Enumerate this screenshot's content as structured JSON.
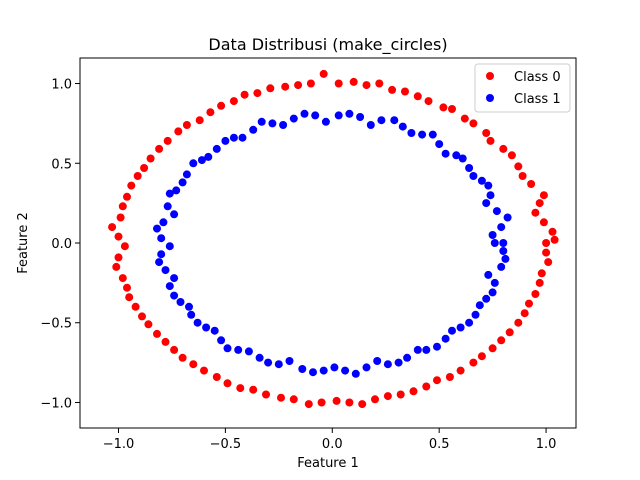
{
  "chart_data": {
    "type": "scatter",
    "title": "Data Distribusi (make_circles)",
    "xlabel": "Feature 1",
    "ylabel": "Feature 2",
    "xlim": [
      -1.18,
      1.14
    ],
    "ylim": [
      -1.16,
      1.16
    ],
    "xticks": [
      -1.0,
      -0.5,
      0.0,
      0.5,
      1.0
    ],
    "xtick_labels": [
      "−1.0",
      "−0.5",
      "0.0",
      "0.5",
      "1.0"
    ],
    "yticks": [
      -1.0,
      -0.5,
      0.0,
      0.5,
      1.0
    ],
    "ytick_labels": [
      "−1.0",
      "−0.5",
      "0.0",
      "0.5",
      "1.0"
    ],
    "grid": false,
    "legend_position": "top-right",
    "series": [
      {
        "name": "Class 0",
        "color": "#ff0000",
        "points": [
          [
            1.0,
            0.0
          ],
          [
            0.99,
            0.13
          ],
          [
            0.97,
            0.25
          ],
          [
            0.93,
            0.37
          ],
          [
            0.87,
            0.48
          ],
          [
            0.8,
            0.59
          ],
          [
            0.72,
            0.69
          ],
          [
            0.62,
            0.78
          ],
          [
            0.52,
            0.85
          ],
          [
            0.4,
            0.92
          ],
          [
            0.28,
            0.96
          ],
          [
            0.16,
            0.99
          ],
          [
            0.03,
            1.0
          ],
          [
            -0.1,
            1.0
          ],
          [
            -0.22,
            0.98
          ],
          [
            -0.35,
            0.94
          ],
          [
            -0.46,
            0.89
          ],
          [
            -0.57,
            0.82
          ],
          [
            -0.68,
            0.74
          ],
          [
            -0.77,
            0.64
          ],
          [
            -0.85,
            0.53
          ],
          [
            -0.91,
            0.42
          ],
          [
            -0.96,
            0.29
          ],
          [
            -0.99,
            0.16
          ],
          [
            -1.0,
            0.04
          ],
          [
            -1.0,
            -0.09
          ],
          [
            -0.98,
            -0.22
          ],
          [
            -0.95,
            -0.34
          ],
          [
            -0.89,
            -0.46
          ],
          [
            -0.82,
            -0.57
          ],
          [
            -0.74,
            -0.67
          ],
          [
            -0.65,
            -0.76
          ],
          [
            -0.54,
            -0.84
          ],
          [
            -0.43,
            -0.91
          ],
          [
            -0.31,
            -0.95
          ],
          [
            -0.18,
            -0.98
          ],
          [
            -0.05,
            -1.0
          ],
          [
            0.08,
            -1.0
          ],
          [
            0.2,
            -0.98
          ],
          [
            0.32,
            -0.95
          ],
          [
            0.44,
            -0.9
          ],
          [
            0.55,
            -0.84
          ],
          [
            0.66,
            -0.75
          ],
          [
            0.75,
            -0.66
          ],
          [
            0.83,
            -0.56
          ],
          [
            0.9,
            -0.44
          ],
          [
            0.95,
            -0.32
          ],
          [
            0.98,
            -0.19
          ],
          [
            1.0,
            -0.06
          ],
          [
            1.03,
            0.07
          ],
          [
            0.95,
            0.19
          ],
          [
            0.99,
            0.3
          ],
          [
            0.89,
            0.42
          ],
          [
            0.84,
            0.55
          ],
          [
            0.74,
            0.64
          ],
          [
            0.66,
            0.75
          ],
          [
            0.56,
            0.84
          ],
          [
            0.45,
            0.89
          ],
          [
            0.34,
            0.95
          ],
          [
            0.22,
            1.0
          ],
          [
            0.1,
            1.01
          ],
          [
            -0.04,
            1.06
          ],
          [
            -0.16,
            0.99
          ],
          [
            -0.29,
            0.97
          ],
          [
            -0.41,
            0.93
          ],
          [
            -0.52,
            0.86
          ],
          [
            -0.62,
            0.77
          ],
          [
            -0.72,
            0.7
          ],
          [
            -0.81,
            0.59
          ],
          [
            -0.88,
            0.47
          ],
          [
            -0.94,
            0.36
          ],
          [
            -0.98,
            0.23
          ],
          [
            -1.03,
            0.1
          ],
          [
            -0.97,
            -0.02
          ],
          [
            -1.01,
            -0.15
          ],
          [
            -0.96,
            -0.28
          ],
          [
            -0.92,
            -0.4
          ],
          [
            -0.86,
            -0.51
          ],
          [
            -0.78,
            -0.62
          ],
          [
            -0.7,
            -0.72
          ],
          [
            -0.6,
            -0.8
          ],
          [
            -0.49,
            -0.88
          ],
          [
            -0.37,
            -0.92
          ],
          [
            -0.24,
            -0.97
          ],
          [
            -0.11,
            -1.01
          ],
          [
            0.02,
            -0.99
          ],
          [
            0.14,
            -1.01
          ],
          [
            0.26,
            -0.96
          ],
          [
            0.38,
            -0.93
          ],
          [
            0.49,
            -0.86
          ],
          [
            0.6,
            -0.8
          ],
          [
            0.7,
            -0.71
          ],
          [
            0.79,
            -0.61
          ],
          [
            0.87,
            -0.5
          ],
          [
            0.92,
            -0.38
          ],
          [
            0.97,
            -0.25
          ],
          [
            1.01,
            -0.12
          ],
          [
            1.04,
            0.02
          ]
        ]
      },
      {
        "name": "Class 1",
        "color": "#0000ff",
        "points": [
          [
            0.8,
            0.0
          ],
          [
            0.79,
            0.1
          ],
          [
            0.77,
            0.2
          ],
          [
            0.74,
            0.3
          ],
          [
            0.7,
            0.39
          ],
          [
            0.64,
            0.47
          ],
          [
            0.58,
            0.55
          ],
          [
            0.5,
            0.62
          ],
          [
            0.42,
            0.68
          ],
          [
            0.33,
            0.73
          ],
          [
            0.23,
            0.77
          ],
          [
            0.13,
            0.79
          ],
          [
            0.03,
            0.8
          ],
          [
            -0.08,
            0.8
          ],
          [
            -0.18,
            0.78
          ],
          [
            -0.28,
            0.75
          ],
          [
            -0.37,
            0.71
          ],
          [
            -0.46,
            0.66
          ],
          [
            -0.54,
            0.59
          ],
          [
            -0.61,
            0.52
          ],
          [
            -0.68,
            0.43
          ],
          [
            -0.73,
            0.33
          ],
          [
            -0.77,
            0.23
          ],
          [
            -0.79,
            0.13
          ],
          [
            -0.8,
            0.03
          ],
          [
            -0.8,
            -0.07
          ],
          [
            -0.78,
            -0.17
          ],
          [
            -0.76,
            -0.27
          ],
          [
            -0.71,
            -0.37
          ],
          [
            -0.66,
            -0.45
          ],
          [
            -0.59,
            -0.53
          ],
          [
            -0.52,
            -0.61
          ],
          [
            -0.44,
            -0.67
          ],
          [
            -0.34,
            -0.72
          ],
          [
            -0.25,
            -0.76
          ],
          [
            -0.14,
            -0.79
          ],
          [
            -0.04,
            -0.8
          ],
          [
            0.06,
            -0.8
          ],
          [
            0.16,
            -0.78
          ],
          [
            0.26,
            -0.76
          ],
          [
            0.35,
            -0.72
          ],
          [
            0.44,
            -0.67
          ],
          [
            0.53,
            -0.6
          ],
          [
            0.6,
            -0.53
          ],
          [
            0.67,
            -0.45
          ],
          [
            0.72,
            -0.35
          ],
          [
            0.76,
            -0.25
          ],
          [
            0.79,
            -0.15
          ],
          [
            0.8,
            -0.05
          ],
          [
            0.75,
            0.05
          ],
          [
            0.82,
            0.16
          ],
          [
            0.72,
            0.25
          ],
          [
            0.73,
            0.36
          ],
          [
            0.66,
            0.42
          ],
          [
            0.61,
            0.53
          ],
          [
            0.53,
            0.56
          ],
          [
            0.47,
            0.68
          ],
          [
            0.37,
            0.69
          ],
          [
            0.29,
            0.77
          ],
          [
            0.18,
            0.74
          ],
          [
            0.08,
            0.81
          ],
          [
            -0.03,
            0.76
          ],
          [
            -0.13,
            0.81
          ],
          [
            -0.23,
            0.74
          ],
          [
            -0.33,
            0.76
          ],
          [
            -0.42,
            0.66
          ],
          [
            -0.5,
            0.64
          ],
          [
            -0.58,
            0.54
          ],
          [
            -0.65,
            0.5
          ],
          [
            -0.7,
            0.38
          ],
          [
            -0.76,
            0.31
          ],
          [
            -0.74,
            0.18
          ],
          [
            -0.82,
            0.09
          ],
          [
            -0.76,
            -0.02
          ],
          [
            -0.81,
            -0.12
          ],
          [
            -0.74,
            -0.22
          ],
          [
            -0.74,
            -0.33
          ],
          [
            -0.67,
            -0.4
          ],
          [
            -0.63,
            -0.5
          ],
          [
            -0.55,
            -0.55
          ],
          [
            -0.49,
            -0.66
          ],
          [
            -0.39,
            -0.68
          ],
          [
            -0.3,
            -0.75
          ],
          [
            -0.2,
            -0.74
          ],
          [
            -0.09,
            -0.81
          ],
          [
            0.01,
            -0.78
          ],
          [
            0.11,
            -0.82
          ],
          [
            0.21,
            -0.74
          ],
          [
            0.31,
            -0.75
          ],
          [
            0.4,
            -0.67
          ],
          [
            0.49,
            -0.65
          ],
          [
            0.56,
            -0.55
          ],
          [
            0.64,
            -0.5
          ],
          [
            0.69,
            -0.39
          ],
          [
            0.75,
            -0.31
          ],
          [
            0.73,
            -0.2
          ],
          [
            0.81,
            -0.1
          ],
          [
            0.76,
            0.0
          ]
        ]
      }
    ]
  }
}
